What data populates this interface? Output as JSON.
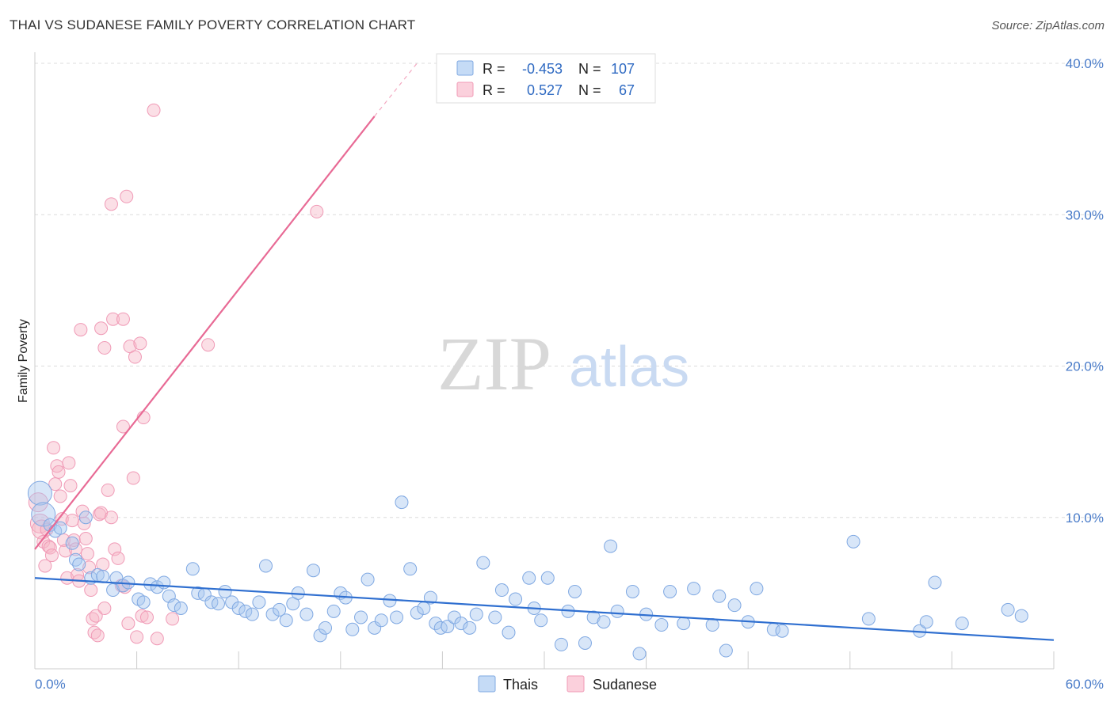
{
  "header": {
    "title": "THAI VS SUDANESE FAMILY POVERTY CORRELATION CHART",
    "source": "Source: ZipAtlas.com"
  },
  "watermark": {
    "zip": "ZIP",
    "atlas": "atlas"
  },
  "legend": {
    "rows": [
      {
        "r_label": "R =",
        "r_value": "-0.453",
        "n_label": "N =",
        "n_value": "107",
        "color": "#a8c8f0"
      },
      {
        "r_label": "R =",
        "r_value": "0.527",
        "n_label": "N =",
        "n_value": "67",
        "color": "#f6b8c8"
      }
    ]
  },
  "bottom_legend": [
    "Thais",
    "Sudanese"
  ],
  "chart_data": {
    "type": "scatter",
    "title": "THAI VS SUDANESE FAMILY POVERTY CORRELATION CHART",
    "xlabel": "",
    "ylabel": "Family Poverty",
    "xlim": [
      0,
      60
    ],
    "ylim": [
      0,
      40
    ],
    "x_tick_labels": [
      "0.0%",
      "60.0%"
    ],
    "y_tick_labels": [
      "10.0%",
      "20.0%",
      "30.0%",
      "40.0%"
    ],
    "y_ticks": [
      10,
      20,
      30,
      40
    ],
    "grid": true,
    "legend_position": "top-center",
    "colors": {
      "thais": "#6f9fe0",
      "sudanese": "#f08db0",
      "thais_line": "#2f6fd0",
      "sudanese_line": "#e86a95"
    },
    "series": [
      {
        "name": "Thais",
        "trend": {
          "x": [
            0,
            60
          ],
          "y": [
            6.0,
            1.9
          ]
        },
        "points": [
          [
            0.3,
            11.6
          ],
          [
            0.5,
            10.2
          ],
          [
            0.9,
            9.5
          ],
          [
            1.2,
            9.1
          ],
          [
            1.5,
            9.3
          ],
          [
            2.2,
            8.3
          ],
          [
            2.4,
            7.2
          ],
          [
            2.6,
            6.9
          ],
          [
            3.0,
            10.0
          ],
          [
            3.3,
            6.0
          ],
          [
            3.7,
            6.2
          ],
          [
            4.0,
            6.1
          ],
          [
            4.6,
            5.2
          ],
          [
            4.8,
            6.0
          ],
          [
            5.2,
            5.5
          ],
          [
            5.5,
            5.7
          ],
          [
            6.1,
            4.6
          ],
          [
            6.4,
            4.4
          ],
          [
            6.8,
            5.6
          ],
          [
            7.2,
            5.4
          ],
          [
            7.6,
            5.7
          ],
          [
            7.9,
            4.8
          ],
          [
            8.2,
            4.2
          ],
          [
            8.6,
            4.0
          ],
          [
            9.3,
            6.6
          ],
          [
            9.6,
            5.0
          ],
          [
            10.0,
            4.9
          ],
          [
            10.4,
            4.4
          ],
          [
            10.8,
            4.3
          ],
          [
            11.2,
            5.1
          ],
          [
            11.6,
            4.4
          ],
          [
            12.0,
            4.0
          ],
          [
            12.4,
            3.8
          ],
          [
            12.8,
            3.6
          ],
          [
            13.2,
            4.4
          ],
          [
            13.6,
            6.8
          ],
          [
            14.0,
            3.6
          ],
          [
            14.4,
            3.9
          ],
          [
            14.8,
            3.2
          ],
          [
            15.2,
            4.3
          ],
          [
            15.5,
            5.0
          ],
          [
            16.0,
            3.6
          ],
          [
            16.4,
            6.5
          ],
          [
            16.8,
            2.2
          ],
          [
            17.1,
            2.7
          ],
          [
            17.6,
            3.8
          ],
          [
            18.0,
            5.0
          ],
          [
            18.3,
            4.7
          ],
          [
            18.7,
            2.6
          ],
          [
            19.2,
            3.4
          ],
          [
            19.6,
            5.9
          ],
          [
            20.0,
            2.7
          ],
          [
            20.4,
            3.2
          ],
          [
            20.9,
            4.5
          ],
          [
            21.3,
            3.4
          ],
          [
            21.6,
            11.0
          ],
          [
            22.1,
            6.6
          ],
          [
            22.5,
            3.7
          ],
          [
            22.9,
            4.0
          ],
          [
            23.3,
            4.7
          ],
          [
            23.6,
            3.0
          ],
          [
            23.9,
            2.7
          ],
          [
            24.3,
            2.8
          ],
          [
            24.7,
            3.4
          ],
          [
            25.1,
            3.0
          ],
          [
            25.6,
            2.7
          ],
          [
            26.0,
            3.6
          ],
          [
            26.4,
            7.0
          ],
          [
            27.1,
            3.4
          ],
          [
            27.5,
            5.2
          ],
          [
            27.9,
            2.4
          ],
          [
            28.3,
            4.6
          ],
          [
            29.1,
            6.0
          ],
          [
            29.4,
            4.0
          ],
          [
            29.8,
            3.2
          ],
          [
            30.2,
            6.0
          ],
          [
            31.0,
            1.6
          ],
          [
            31.4,
            3.8
          ],
          [
            31.8,
            5.1
          ],
          [
            32.4,
            1.7
          ],
          [
            32.9,
            3.4
          ],
          [
            33.5,
            3.1
          ],
          [
            33.9,
            8.1
          ],
          [
            34.3,
            3.8
          ],
          [
            35.2,
            5.1
          ],
          [
            35.6,
            1.0
          ],
          [
            36.0,
            3.6
          ],
          [
            36.9,
            2.9
          ],
          [
            37.4,
            5.1
          ],
          [
            38.2,
            3.0
          ],
          [
            38.8,
            5.3
          ],
          [
            39.9,
            2.9
          ],
          [
            40.3,
            4.8
          ],
          [
            40.7,
            1.2
          ],
          [
            41.2,
            4.2
          ],
          [
            42.0,
            3.1
          ],
          [
            42.5,
            5.3
          ],
          [
            43.5,
            2.6
          ],
          [
            44.0,
            2.5
          ],
          [
            48.2,
            8.4
          ],
          [
            49.1,
            3.3
          ],
          [
            52.1,
            2.5
          ],
          [
            52.5,
            3.1
          ],
          [
            53.0,
            5.7
          ],
          [
            54.6,
            3.0
          ],
          [
            57.3,
            3.9
          ],
          [
            58.1,
            3.5
          ]
        ]
      },
      {
        "name": "Sudanese",
        "trend": {
          "x": [
            0,
            20
          ],
          "y": [
            7.9,
            36.5
          ]
        },
        "trend_extension": {
          "x": [
            20,
            22.5
          ],
          "y": [
            36.5,
            40.0
          ]
        },
        "points": [
          [
            0.2,
            11.0
          ],
          [
            0.3,
            9.6
          ],
          [
            0.4,
            9.2
          ],
          [
            0.5,
            8.4
          ],
          [
            0.6,
            6.8
          ],
          [
            0.7,
            9.2
          ],
          [
            0.8,
            8.1
          ],
          [
            0.9,
            8.0
          ],
          [
            1.0,
            7.5
          ],
          [
            1.1,
            14.6
          ],
          [
            1.2,
            12.2
          ],
          [
            1.3,
            13.4
          ],
          [
            1.4,
            13.0
          ],
          [
            1.5,
            11.4
          ],
          [
            1.6,
            9.9
          ],
          [
            1.7,
            8.5
          ],
          [
            1.8,
            7.8
          ],
          [
            1.9,
            6.0
          ],
          [
            2.0,
            13.6
          ],
          [
            2.1,
            12.1
          ],
          [
            2.2,
            9.8
          ],
          [
            2.3,
            8.5
          ],
          [
            2.4,
            7.9
          ],
          [
            2.5,
            6.2
          ],
          [
            2.6,
            5.8
          ],
          [
            2.7,
            22.4
          ],
          [
            2.8,
            10.4
          ],
          [
            2.9,
            9.6
          ],
          [
            3.0,
            8.6
          ],
          [
            3.1,
            7.6
          ],
          [
            3.2,
            6.7
          ],
          [
            3.3,
            5.2
          ],
          [
            3.4,
            3.3
          ],
          [
            3.5,
            2.4
          ],
          [
            3.6,
            3.5
          ],
          [
            3.7,
            2.2
          ],
          [
            3.8,
            10.2
          ],
          [
            3.9,
            10.3
          ],
          [
            4.0,
            6.9
          ],
          [
            4.1,
            4.0
          ],
          [
            4.3,
            11.8
          ],
          [
            4.5,
            10.0
          ],
          [
            4.7,
            7.9
          ],
          [
            4.9,
            7.3
          ],
          [
            5.1,
            5.5
          ],
          [
            5.3,
            5.4
          ],
          [
            5.5,
            3.0
          ],
          [
            5.8,
            12.6
          ],
          [
            6.0,
            2.1
          ],
          [
            6.3,
            3.5
          ],
          [
            6.6,
            3.4
          ],
          [
            3.9,
            22.5
          ],
          [
            4.1,
            21.2
          ],
          [
            4.5,
            30.7
          ],
          [
            4.6,
            23.1
          ],
          [
            5.2,
            16.0
          ],
          [
            5.2,
            23.1
          ],
          [
            5.4,
            31.2
          ],
          [
            5.6,
            21.3
          ],
          [
            5.9,
            20.6
          ],
          [
            6.2,
            21.5
          ],
          [
            6.4,
            16.6
          ],
          [
            7.0,
            36.9
          ],
          [
            7.2,
            2.0
          ],
          [
            8.1,
            3.3
          ],
          [
            10.2,
            21.4
          ],
          [
            16.6,
            30.2
          ]
        ]
      }
    ]
  }
}
